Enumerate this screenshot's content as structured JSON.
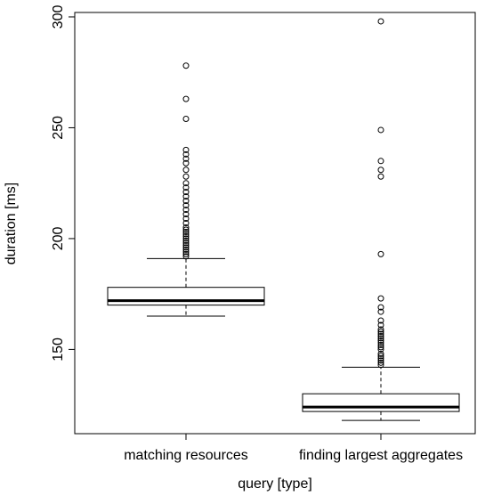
{
  "chart_data": {
    "type": "boxplot",
    "title": "",
    "xlabel": "query [type]",
    "ylabel": "duration [ms]",
    "ylim": [
      112,
      302
    ],
    "yticks": [
      150,
      200,
      250,
      300
    ],
    "grid": false,
    "legend": "none",
    "categories": [
      "matching resources",
      "finding largest aggregates"
    ],
    "boxes": [
      {
        "name": "matching resources",
        "whisker_low": 165,
        "q1": 170,
        "median": 172,
        "q3": 178,
        "whisker_high": 191,
        "outliers": [
          192,
          193,
          194,
          195,
          196,
          197,
          198,
          199,
          200,
          201,
          202,
          203,
          204,
          205,
          207,
          209,
          211,
          213,
          215,
          217,
          219,
          221,
          223,
          225,
          228,
          231,
          234,
          236,
          238,
          240,
          254,
          263,
          278
        ]
      },
      {
        "name": "finding largest aggregates",
        "whisker_low": 118,
        "q1": 122,
        "median": 124,
        "q3": 130,
        "whisker_high": 142,
        "outliers": [
          143,
          144,
          145,
          146,
          147,
          148,
          150,
          151,
          152,
          153,
          154,
          155,
          156,
          157,
          158,
          159,
          161,
          163,
          167,
          169,
          173,
          193,
          228,
          231,
          235,
          249,
          298
        ]
      }
    ]
  }
}
